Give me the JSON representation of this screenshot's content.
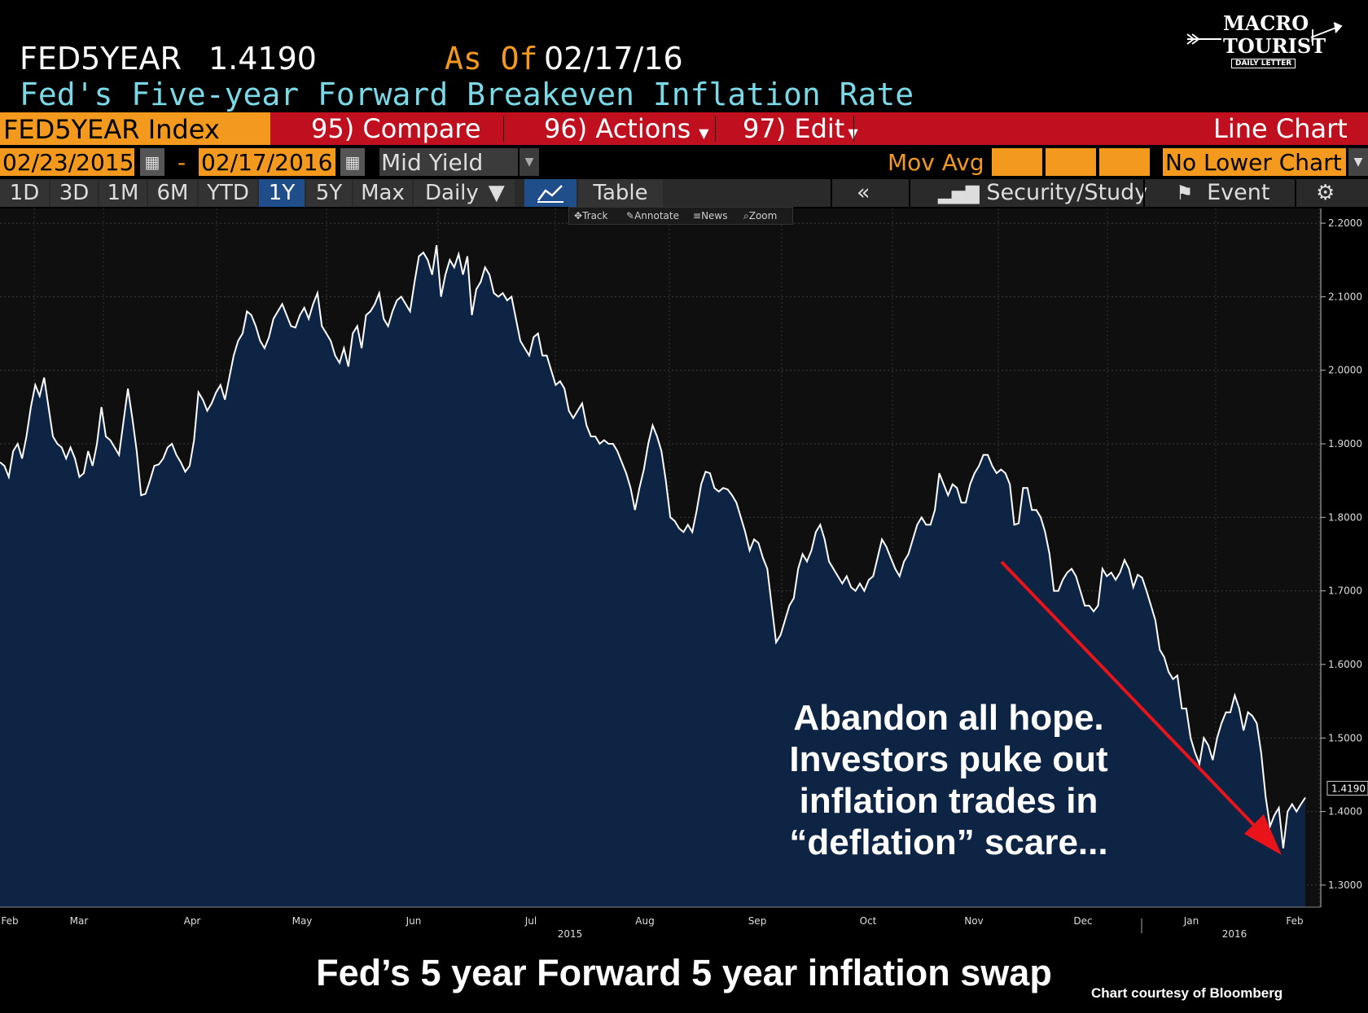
{
  "header": {
    "ticker": "FED5YEAR",
    "last_price": "1.4190",
    "as_of_label": "As Of",
    "as_of_date": "02/17/16",
    "description": "Fed's Five-year Forward Breakeven Inflation Rate"
  },
  "logo": {
    "line1": "MACRO",
    "line2": "TOURIST",
    "line3": "DAILY LETTER"
  },
  "toolbar1": {
    "security": "FED5YEAR Index",
    "compare": "95) Compare",
    "actions": "96) Actions",
    "edit": "97) Edit",
    "chart_type": "Line Chart"
  },
  "toolbar2": {
    "start_date": "02/23/2015",
    "end_date": "02/17/2016",
    "dash": "-",
    "field": "Mid Yield",
    "mov_avg": "Mov Avg",
    "lower_chart": "No Lower Chart"
  },
  "toolbar3": {
    "ranges": [
      "1D",
      "3D",
      "1M",
      "6M",
      "YTD",
      "1Y",
      "5Y",
      "Max"
    ],
    "active_range": "1Y",
    "frequency": "Daily",
    "table": "Table",
    "back": "«",
    "security_study": "Security/Study",
    "event": "Event"
  },
  "tool_strip": {
    "track": "Track",
    "annotate": "Annotate",
    "news": "News",
    "zoom": "Zoom"
  },
  "colors": {
    "orange": "#f39a1e",
    "red_bar": "#c0101f",
    "cyan_text": "#79d9e6",
    "area_fill": "#0d2444",
    "line": "#ffffff",
    "arrow": "#e8141a"
  },
  "annotation": "Abandon all hope. Investors puke out inflation trades in “deflation” scare...",
  "caption": "Fed’s 5 year Forward 5 year inflation swap",
  "credit": "Chart courtesy of Bloomberg",
  "chart_data": {
    "type": "area",
    "ylim": [
      1.27,
      2.22
    ],
    "y_ticks": [
      "2.2000",
      "2.1000",
      "2.0000",
      "1.9000",
      "1.8000",
      "1.7000",
      "1.6000",
      "1.5000",
      "1.4000",
      "1.3000"
    ],
    "last_value_label": "1.4190",
    "x_labels": [
      "Feb",
      "Mar",
      "Apr",
      "May",
      "Jun",
      "Jul",
      "Aug",
      "Sep",
      "Oct",
      "Nov",
      "Dec",
      "Jan",
      "Feb"
    ],
    "year_labels": [
      "2015",
      "2016"
    ],
    "grid": true,
    "series": [
      {
        "values": [
          1.875,
          1.87,
          1.855,
          1.89,
          1.9,
          1.88,
          1.91,
          1.95,
          1.98,
          1.965,
          1.99,
          1.95,
          1.91,
          1.9,
          1.895,
          1.88,
          1.895,
          1.88,
          1.855,
          1.86,
          1.89,
          1.87,
          1.9,
          1.95,
          1.91,
          1.905,
          1.895,
          1.885,
          1.93,
          1.975,
          1.935,
          1.89,
          1.83,
          1.832,
          1.85,
          1.87,
          1.872,
          1.88,
          1.895,
          1.9,
          1.885,
          1.875,
          1.862,
          1.87,
          1.905,
          1.97,
          1.96,
          1.945,
          1.955,
          1.97,
          1.98,
          1.96,
          1.99,
          2.02,
          2.04,
          2.05,
          2.08,
          2.075,
          2.06,
          2.04,
          2.03,
          2.045,
          2.07,
          2.08,
          2.09,
          2.075,
          2.06,
          2.058,
          2.075,
          2.085,
          2.07,
          2.09,
          2.105,
          2.06,
          2.05,
          2.04,
          2.02,
          2.01,
          2.03,
          2.005,
          2.05,
          2.06,
          2.03,
          2.075,
          2.08,
          2.09,
          2.105,
          2.07,
          2.06,
          2.08,
          2.095,
          2.1,
          2.09,
          2.08,
          2.12,
          2.155,
          2.16,
          2.15,
          2.13,
          2.17,
          2.1,
          2.13,
          2.15,
          2.14,
          2.158,
          2.13,
          2.155,
          2.075,
          2.11,
          2.12,
          2.14,
          2.13,
          2.105,
          2.1,
          2.105,
          2.095,
          2.1,
          2.07,
          2.04,
          2.03,
          2.02,
          2.045,
          2.05,
          2.02,
          2.02,
          2.0,
          1.98,
          1.985,
          1.975,
          1.945,
          1.935,
          1.945,
          1.955,
          1.925,
          1.91,
          1.91,
          1.9,
          1.905,
          1.9,
          1.9,
          1.89,
          1.875,
          1.86,
          1.84,
          1.81,
          1.84,
          1.865,
          1.9,
          1.925,
          1.91,
          1.89,
          1.85,
          1.8,
          1.795,
          1.785,
          1.78,
          1.79,
          1.78,
          1.81,
          1.845,
          1.862,
          1.86,
          1.84,
          1.835,
          1.84,
          1.838,
          1.83,
          1.82,
          1.8,
          1.78,
          1.755,
          1.77,
          1.765,
          1.745,
          1.73,
          1.68,
          1.63,
          1.64,
          1.66,
          1.68,
          1.69,
          1.73,
          1.75,
          1.74,
          1.755,
          1.78,
          1.79,
          1.77,
          1.74,
          1.73,
          1.72,
          1.71,
          1.72,
          1.705,
          1.7,
          1.71,
          1.7,
          1.715,
          1.72,
          1.745,
          1.77,
          1.76,
          1.745,
          1.73,
          1.72,
          1.74,
          1.75,
          1.77,
          1.79,
          1.8,
          1.79,
          1.79,
          1.81,
          1.86,
          1.845,
          1.83,
          1.845,
          1.84,
          1.82,
          1.82,
          1.845,
          1.86,
          1.87,
          1.885,
          1.885,
          1.87,
          1.86,
          1.865,
          1.86,
          1.845,
          1.79,
          1.792,
          1.84,
          1.84,
          1.81,
          1.81,
          1.8,
          1.78,
          1.75,
          1.7,
          1.7,
          1.715,
          1.725,
          1.73,
          1.72,
          1.7,
          1.68,
          1.68,
          1.672,
          1.68,
          1.73,
          1.72,
          1.725,
          1.715,
          1.725,
          1.742,
          1.73,
          1.705,
          1.722,
          1.718,
          1.7,
          1.68,
          1.66,
          1.62,
          1.61,
          1.59,
          1.58,
          1.585,
          1.54,
          1.54,
          1.5,
          1.48,
          1.465,
          1.5,
          1.49,
          1.47,
          1.5,
          1.52,
          1.535,
          1.535,
          1.558,
          1.54,
          1.51,
          1.535,
          1.53,
          1.52,
          1.48,
          1.42,
          1.38,
          1.395,
          1.405,
          1.35,
          1.4,
          1.41,
          1.4,
          1.41,
          1.419
        ]
      }
    ]
  }
}
